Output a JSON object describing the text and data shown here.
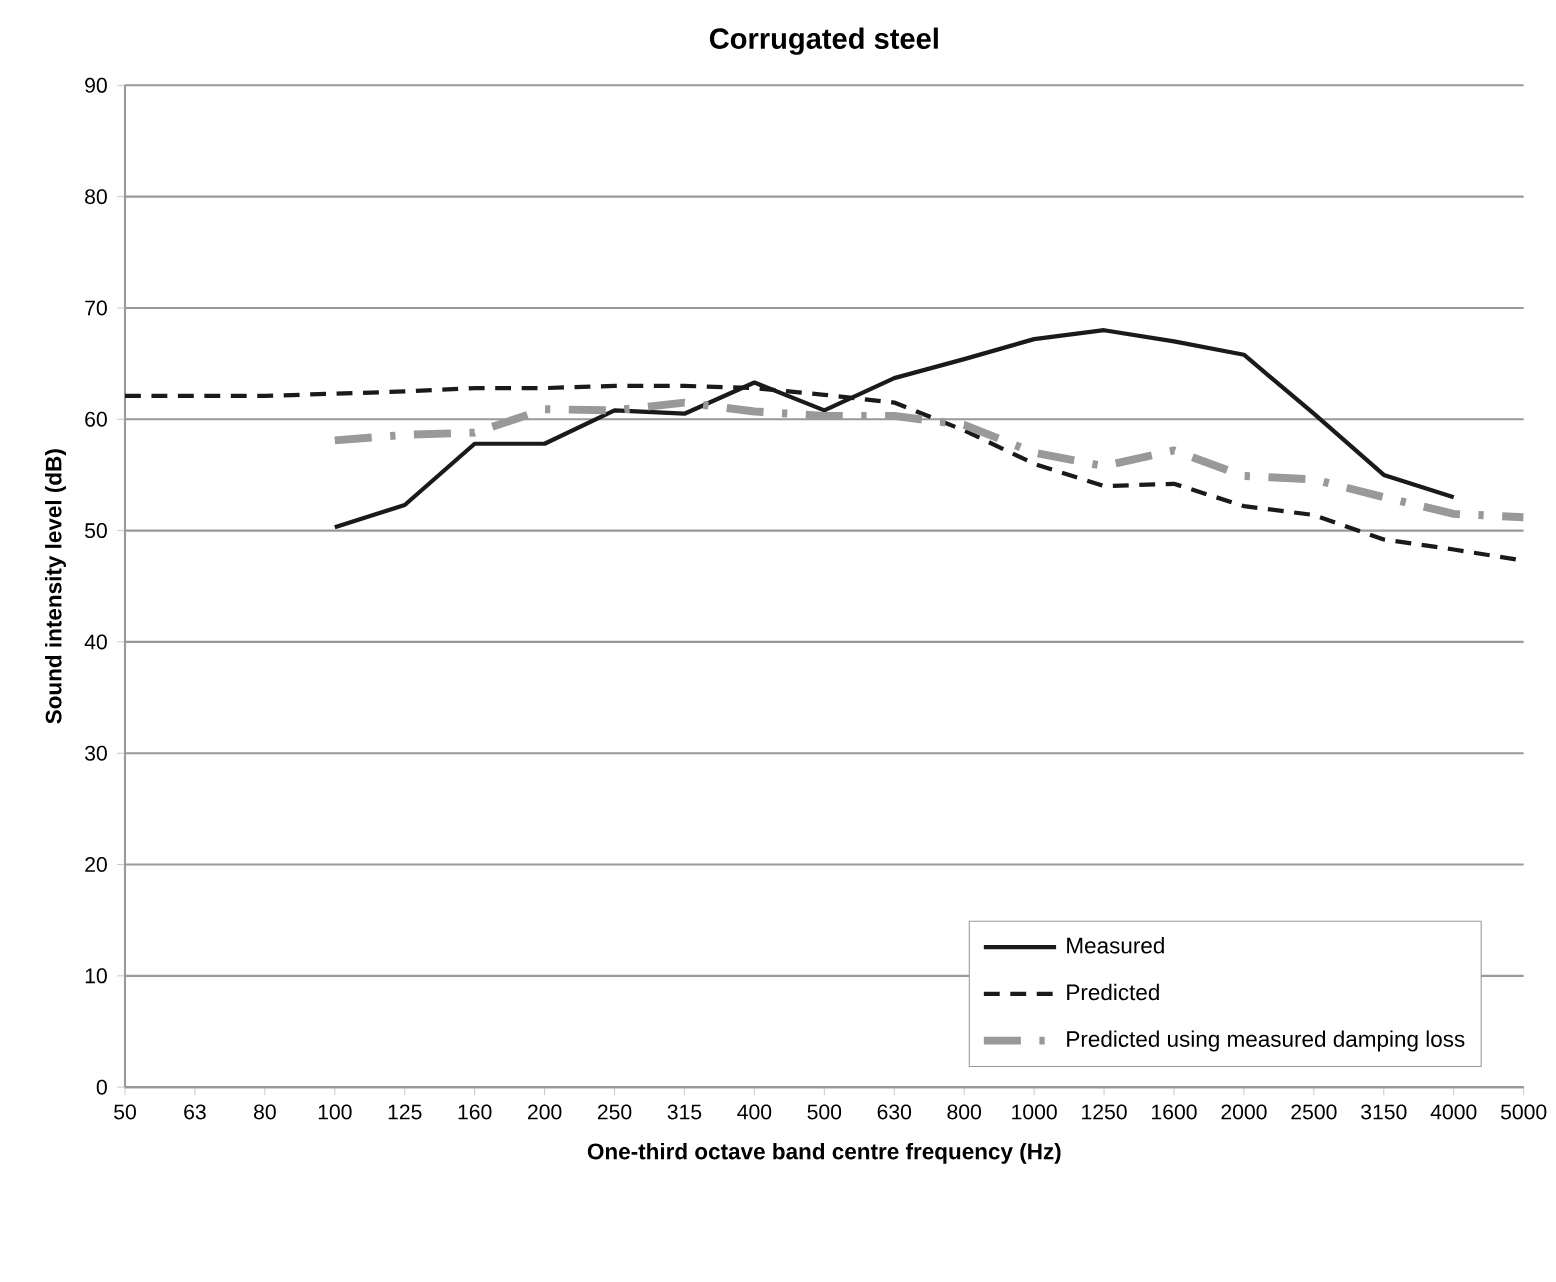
{
  "chart_data": {
    "type": "line",
    "title": "Corrugated steel",
    "xlabel": "One-third octave band centre frequency (Hz)",
    "ylabel": "Sound intensity level (dB)",
    "categories": [
      "50",
      "63",
      "80",
      "100",
      "125",
      "160",
      "200",
      "250",
      "315",
      "400",
      "500",
      "630",
      "800",
      "1000",
      "1250",
      "1600",
      "2000",
      "2500",
      "3150",
      "4000",
      "5000"
    ],
    "series": [
      {
        "name": "Measured",
        "color": "#1a1a1a",
        "line_style": "solid",
        "values": [
          null,
          null,
          null,
          50.3,
          52.3,
          57.8,
          57.8,
          60.8,
          60.5,
          63.3,
          60.8,
          63.7,
          65.4,
          67.2,
          68.0,
          67.0,
          65.8,
          60.5,
          55.0,
          53.0,
          null
        ]
      },
      {
        "name": "Predicted",
        "color": "#1a1a1a",
        "line_style": "dashed",
        "values": [
          62.1,
          62.1,
          62.1,
          62.3,
          62.5,
          62.8,
          62.8,
          63.0,
          63.0,
          62.8,
          62.2,
          61.5,
          59.0,
          56.0,
          54.0,
          54.2,
          52.2,
          51.4,
          49.2,
          48.3,
          47.3
        ]
      },
      {
        "name": "Predicted using measured damping loss",
        "color": "#999999",
        "line_style": "dashdot",
        "values": [
          null,
          null,
          null,
          58.1,
          58.6,
          58.8,
          60.9,
          60.8,
          61.5,
          60.7,
          60.3,
          60.3,
          59.5,
          57.0,
          55.8,
          57.2,
          54.9,
          54.6,
          53.0,
          51.5,
          51.2
        ]
      }
    ],
    "ylim": [
      0,
      90
    ],
    "yticks": [
      0,
      10,
      20,
      30,
      40,
      50,
      60,
      70,
      80,
      90
    ],
    "grid": "y",
    "legend": "bottom right",
    "marker": "none"
  }
}
